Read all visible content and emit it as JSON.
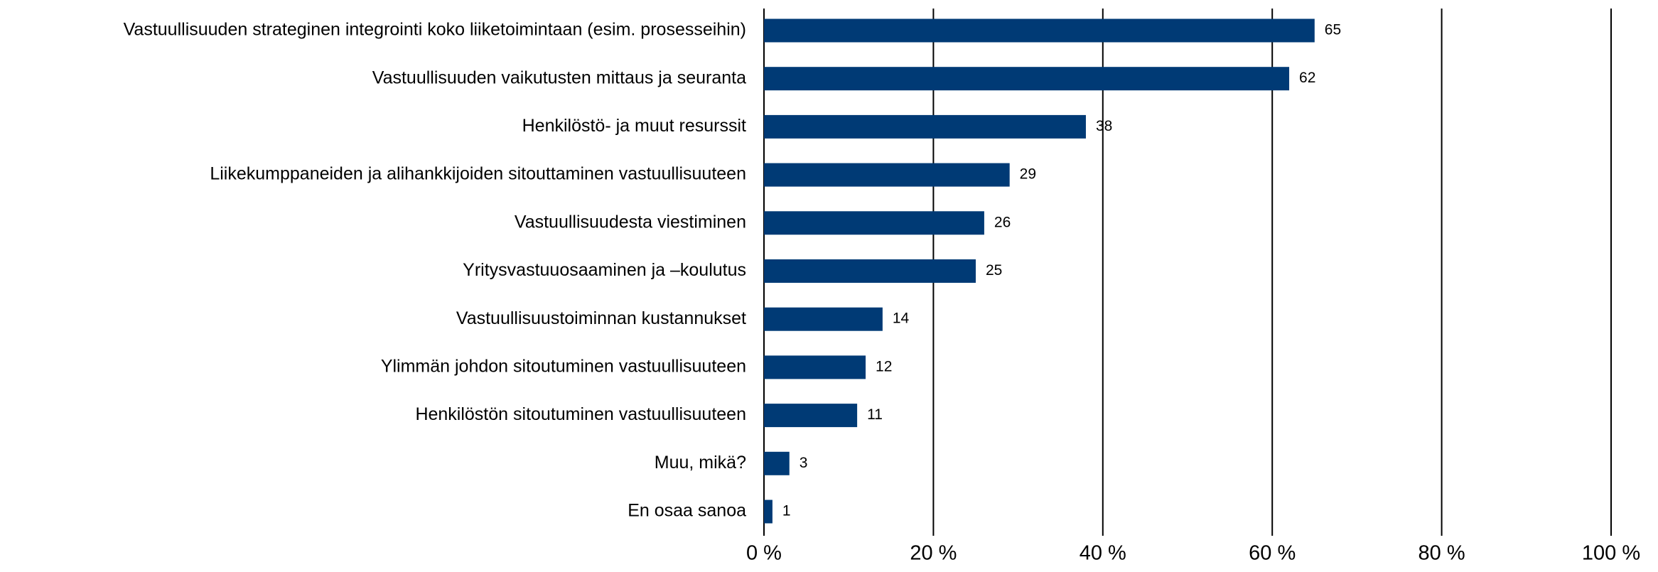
{
  "chart_data": {
    "type": "barh",
    "categories": [
      "Vastuullisuuden strateginen integrointi koko liiketoimintaan (esim. prosesseihin)",
      "Vastuullisuuden vaikutusten mittaus ja seuranta",
      "Henkilöstö- ja muut resurssit",
      "Liikekumppaneiden ja alihankkijoiden sitouttaminen vastuullisuuteen",
      "Vastuullisuudesta viestiminen",
      "Yritysvastuuosaaminen ja –koulutus",
      "Vastuullisuustoiminnan kustannukset",
      "Ylimmän johdon sitoutuminen vastuullisuuteen",
      "Henkilöstön sitoutuminen vastuullisuuteen",
      "Muu, mikä?",
      "En osaa sanoa"
    ],
    "values": [
      65,
      62,
      38,
      29,
      26,
      25,
      14,
      12,
      11,
      3,
      1
    ],
    "color": "#003a75",
    "xlim": [
      0,
      100
    ],
    "xticks": [
      {
        "value": 0,
        "label": "0 %"
      },
      {
        "value": 20,
        "label": "20 %"
      },
      {
        "value": 40,
        "label": "40 %"
      },
      {
        "value": 60,
        "label": "60 %"
      },
      {
        "value": 80,
        "label": "80 %"
      },
      {
        "value": 100,
        "label": "100 %"
      }
    ],
    "grid": true
  }
}
